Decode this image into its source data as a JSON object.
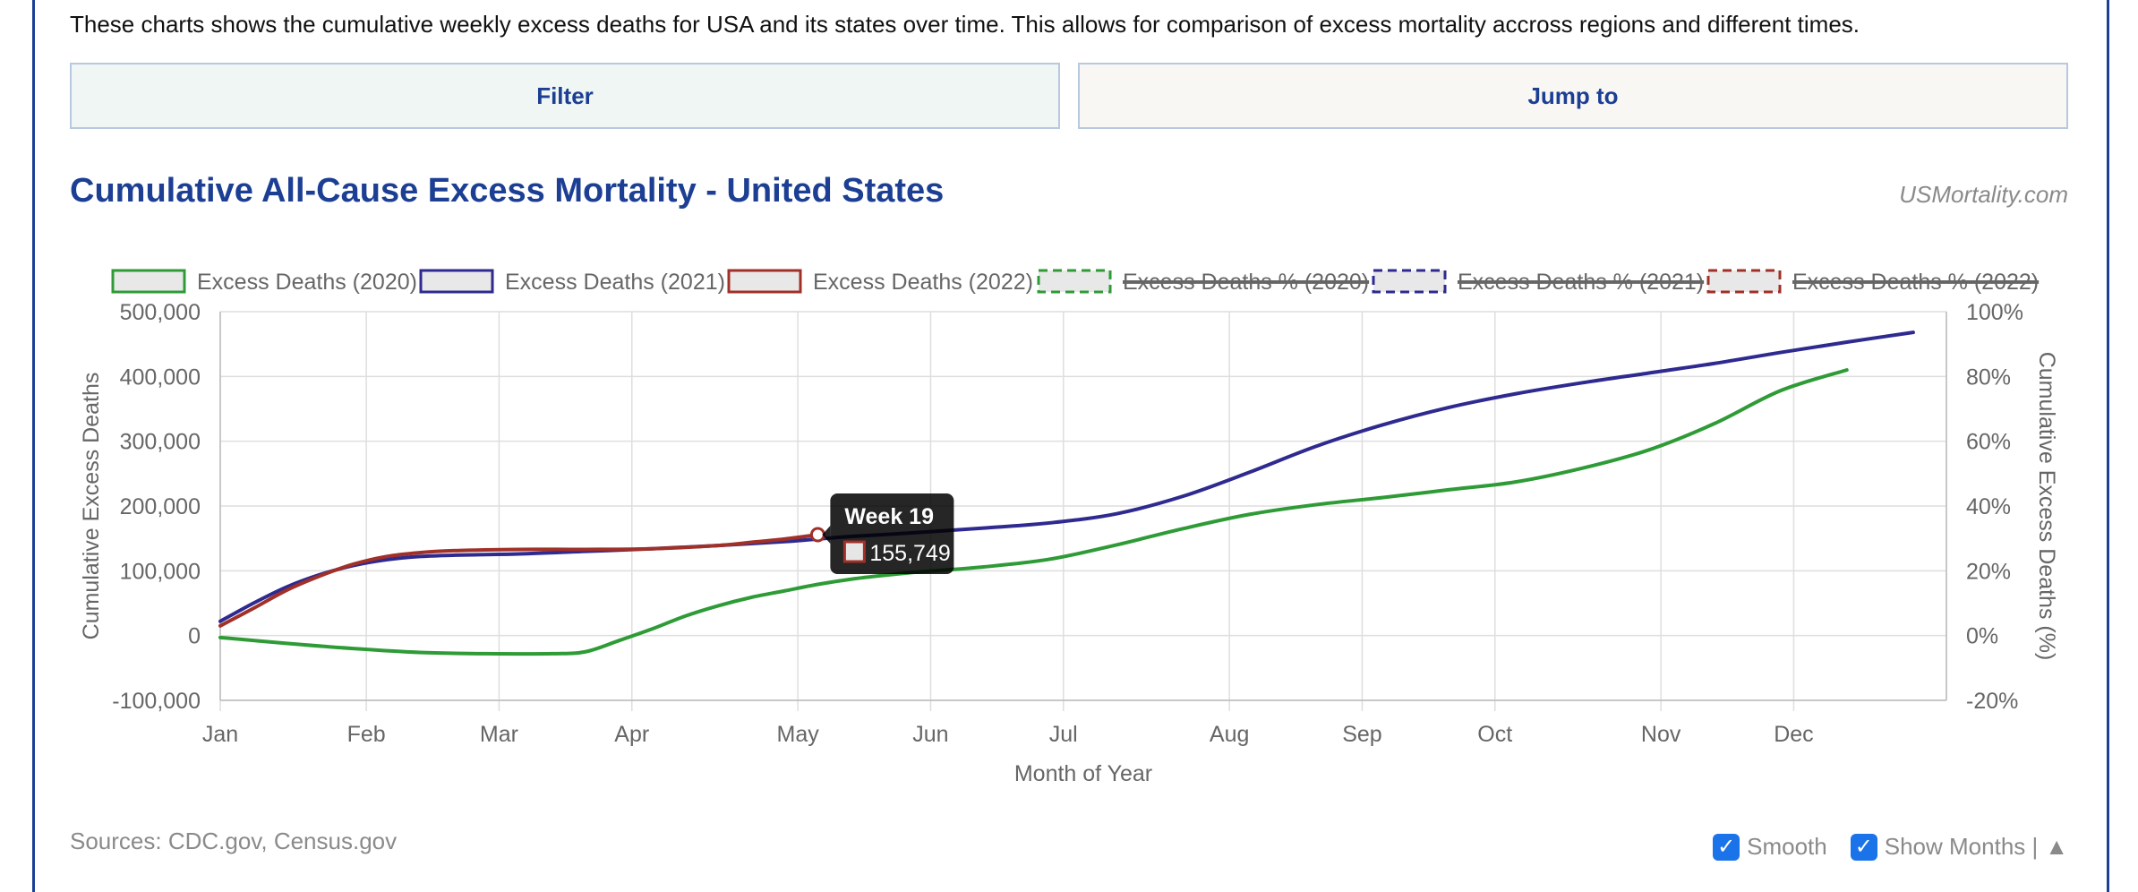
{
  "intro": "These charts shows the cumulative weekly excess deaths for USA and its states over time. This allows for comparison of excess mortality accross regions and different times.",
  "buttons": {
    "filter": "Filter",
    "jump": "Jump to"
  },
  "brand": "USMortality.com",
  "sources": "Sources: CDC.gov, Census.gov",
  "controls": {
    "smooth": "Smooth",
    "show_months": "Show Months |",
    "collapse": "▲",
    "smooth_checked": true,
    "show_months_checked": true
  },
  "tooltip": {
    "title": "Week 19",
    "value": "155,749",
    "series": "Excess Deaths (2022)"
  },
  "colors": {
    "2020": "#2e9b36",
    "2021": "#2e2a8f",
    "2022": "#a03028",
    "title": "#1c3f94"
  },
  "chart_data": {
    "type": "line",
    "title": "Cumulative All-Cause Excess Mortality - United States",
    "xlabel": "Month of Year",
    "ylabel": "Cumulative Excess Deaths",
    "y2label": "Cumulative Excess Deaths (%)",
    "ylim": [
      -100000,
      500000
    ],
    "y2lim": [
      -20,
      100
    ],
    "yticks": [
      "500,000",
      "400,000",
      "300,000",
      "200,000",
      "100,000",
      "0",
      "-100,000"
    ],
    "y2ticks": [
      "100%",
      "80%",
      "60%",
      "40%",
      "20%",
      "0%",
      "-20%"
    ],
    "months": [
      "Jan",
      "Feb",
      "Mar",
      "Apr",
      "May",
      "Jun",
      "Jul",
      "Aug",
      "Sep",
      "Oct",
      "Nov",
      "Dec"
    ],
    "month_weeks": [
      1,
      5.4,
      9.4,
      13.4,
      18.4,
      22.4,
      26.4,
      31.4,
      35.4,
      39.4,
      44.4,
      48.4
    ],
    "xlim": [
      1,
      53
    ],
    "grid": true,
    "legend_position": "top",
    "series": [
      {
        "name": "Excess Deaths (2020)",
        "style": "solid",
        "hidden": false,
        "x": [
          1,
          3,
          5,
          7,
          9,
          11,
          12,
          13,
          14,
          15,
          16,
          17,
          18,
          19,
          20,
          21,
          22,
          24,
          26,
          28,
          30,
          32,
          34,
          36,
          38,
          40,
          42,
          44,
          46,
          48,
          50,
          52,
          53
        ],
        "y": [
          -3000,
          -12000,
          -20000,
          -26000,
          -28000,
          -28000,
          -25000,
          -8000,
          10000,
          30000,
          46000,
          59000,
          69000,
          79000,
          87000,
          93000,
          98000,
          106000,
          118000,
          140000,
          165000,
          187000,
          202000,
          213000,
          225000,
          237000,
          258000,
          286000,
          327000,
          378000,
          410000,
          null,
          null
        ]
      },
      {
        "name": "Excess Deaths (2021)",
        "style": "solid",
        "hidden": false,
        "x": [
          1,
          2,
          3,
          4,
          5,
          6,
          7,
          8,
          10,
          12,
          14,
          16,
          18,
          19,
          20,
          22,
          24,
          26,
          28,
          30,
          32,
          34,
          36,
          38,
          40,
          42,
          44,
          46,
          48,
          50,
          52
        ],
        "y": [
          22000,
          50000,
          75000,
          94000,
          108000,
          117000,
          122000,
          124000,
          126000,
          130000,
          134000,
          139000,
          145000,
          149000,
          153000,
          159000,
          166000,
          174000,
          188000,
          215000,
          252000,
          292000,
          325000,
          352000,
          373000,
          390000,
          405000,
          420000,
          437000,
          453000,
          468000
        ]
      },
      {
        "name": "Excess Deaths (2022)",
        "style": "solid",
        "hidden": false,
        "x": [
          1,
          2,
          3,
          4,
          5,
          6,
          7,
          8,
          10,
          12,
          14,
          16,
          17,
          18,
          19
        ],
        "y": [
          15000,
          42000,
          70000,
          92000,
          110000,
          122000,
          128000,
          131000,
          133000,
          133000,
          134000,
          139000,
          144000,
          149000,
          155749
        ]
      },
      {
        "name": "Excess Deaths % (2020)",
        "style": "dashed",
        "hidden": true,
        "x": [],
        "y": []
      },
      {
        "name": "Excess Deaths % (2021)",
        "style": "dashed",
        "hidden": true,
        "x": [],
        "y": []
      },
      {
        "name": "Excess Deaths % (2022)",
        "style": "dashed",
        "hidden": true,
        "x": [],
        "y": []
      }
    ]
  }
}
